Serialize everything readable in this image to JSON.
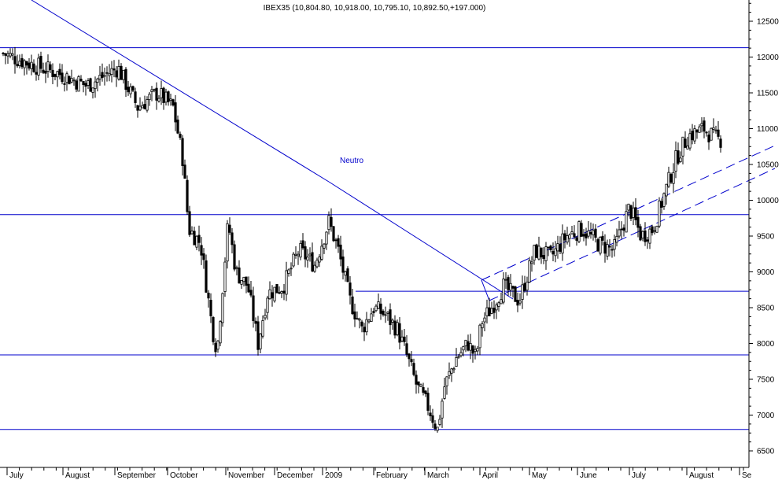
{
  "chart_data": {
    "type": "candlestick",
    "title": "IBEX35 (10,804.80, 10,918.00, 10,795.10, 10,892.50,+197.000)",
    "ylim": [
      6350,
      12650
    ],
    "y_ticks": [
      6500,
      7000,
      7500,
      8000,
      8500,
      9000,
      9500,
      10000,
      10500,
      11000,
      11500,
      12000,
      12500
    ],
    "y_tick_labels": [
      "6500",
      "7000",
      "7500",
      "8000",
      "8500",
      "9000",
      "9500",
      "10000",
      "10500",
      "11000",
      "11500",
      "12000",
      "12500"
    ],
    "x_months": [
      "July",
      "August",
      "September",
      "October",
      "November",
      "December",
      "2009",
      "February",
      "March",
      "April",
      "May",
      "June",
      "July",
      "August",
      "Se"
    ],
    "grid": false,
    "line_color": "#0000cc",
    "candle_color": "#000000",
    "annotation": {
      "text": "Neutro",
      "y": 10100
    },
    "horizontal_levels": [
      12130,
      9800,
      8730,
      7840,
      6800
    ],
    "anchors": [
      {
        "x": "July",
        "y": 12100
      },
      {
        "x": "August",
        "y": 11800
      },
      {
        "x": "September",
        "y": 11700
      },
      {
        "x": "October",
        "y": 11100
      },
      {
        "x": "November",
        "y": 8800
      },
      {
        "x": "December",
        "y": 8900
      },
      {
        "x": "2009",
        "y": 9500
      },
      {
        "x": "February",
        "y": 8400
      },
      {
        "x": "March",
        "y": 7500
      },
      {
        "x": "April",
        "y": 8200
      },
      {
        "x": "May",
        "y": 9100
      },
      {
        "x": "June",
        "y": 9500
      },
      {
        "x": "July",
        "y": 9700
      },
      {
        "x": "August",
        "y": 10900
      }
    ]
  }
}
